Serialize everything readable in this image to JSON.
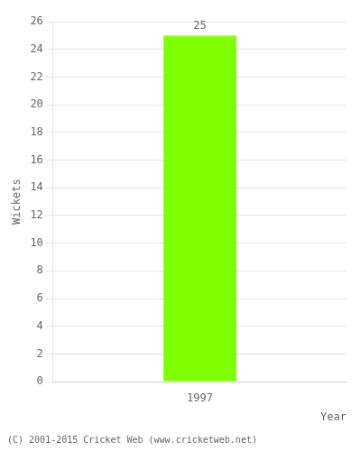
{
  "chart_data": {
    "type": "bar",
    "categories": [
      "1997"
    ],
    "values": [
      25
    ],
    "color": "#7fff00",
    "ylabel": "Wickets",
    "xlabel": "Year",
    "ylim": [
      0,
      26
    ],
    "yticks": [
      0,
      2,
      4,
      6,
      8,
      10,
      12,
      14,
      16,
      18,
      20,
      22,
      24,
      26
    ],
    "grid": true,
    "data_labels": true,
    "annotations": [
      "(C) 2001-2015 Cricket Web (www.cricketweb.net)"
    ]
  }
}
